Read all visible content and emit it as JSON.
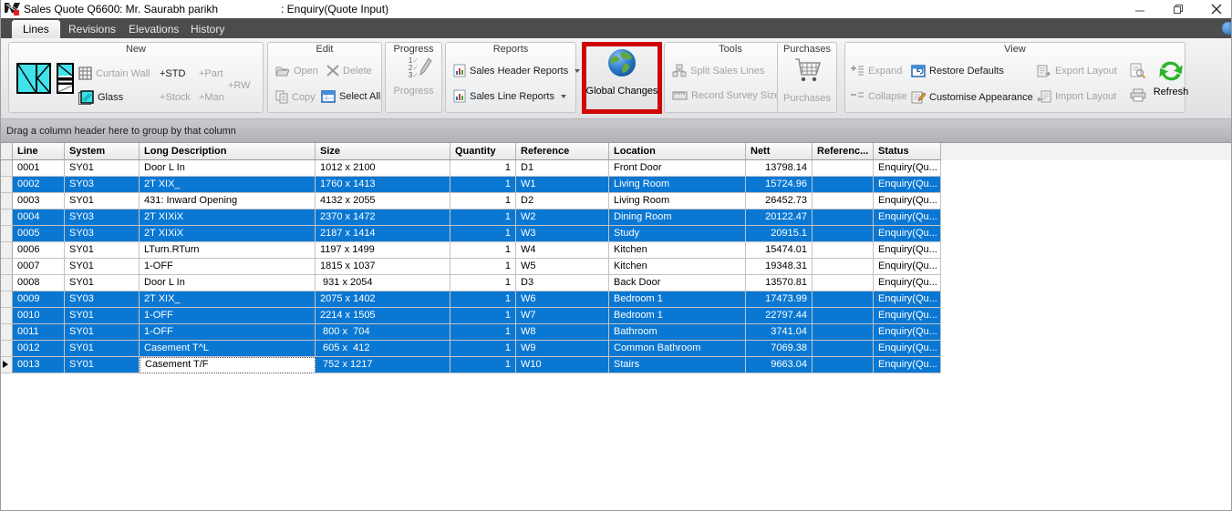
{
  "title_bar": {
    "left": "Sales Quote Q6600",
    "mid": ": Mr. Saurabh parikh",
    "right": ": Enquiry(Quote Input)"
  },
  "tabs": [
    {
      "label": "Lines",
      "active": true
    },
    {
      "label": "Revisions",
      "active": false
    },
    {
      "label": "Elevations",
      "active": false
    },
    {
      "label": "History",
      "active": false
    }
  ],
  "ribbon": {
    "new": {
      "label": "New",
      "curtain_wall": "Curtain Wall",
      "std": "+STD",
      "part": "+Part",
      "rw": "+RW",
      "glass": "Glass",
      "stock": "+Stock",
      "man": "+Man"
    },
    "edit": {
      "label": "Edit",
      "open": "Open",
      "delete": "Delete",
      "copy": "Copy",
      "select_all": "Select All"
    },
    "progress": {
      "label": "Progress",
      "button": "Progress"
    },
    "reports": {
      "label": "Reports",
      "header_reports": "Sales Header Reports",
      "line_reports": "Sales Line Reports"
    },
    "global_changes": {
      "label": "Global Changes"
    },
    "tools": {
      "label": "Tools",
      "split": "Split Sales Lines",
      "record": "Record Survey Sizes"
    },
    "purchases": {
      "label": "Purchases",
      "button": "Purchases"
    },
    "view": {
      "label": "View",
      "expand": "Expand",
      "collapse": "Collapse",
      "restore": "Restore Defaults",
      "customise": "Customise Appearance",
      "export": "Export Layout",
      "import": "Import Layout",
      "refresh": "Refresh"
    }
  },
  "groupbar": {
    "text": "Drag a column header here to group by that column"
  },
  "grid": {
    "columns": [
      "Line",
      "System",
      "Long Description",
      "Size",
      "Quantity",
      "Reference",
      "Location",
      "Nett",
      "Referenc...",
      "Status"
    ],
    "rows": [
      {
        "line": "0001",
        "system": "SY01",
        "desc": "Door L In",
        "size": "1012 x 2100",
        "qty": "1",
        "ref": "D1",
        "loc": "Front Door",
        "nett": "13798.14",
        "ref2": "",
        "status": "Enquiry(Qu...",
        "selected": false,
        "current": false,
        "editing": false
      },
      {
        "line": "0002",
        "system": "SY03",
        "desc": "2T XIX_",
        "size": "1760 x 1413",
        "qty": "1",
        "ref": "W1",
        "loc": "Living Room",
        "nett": "15724.96",
        "ref2": "",
        "status": "Enquiry(Qu...",
        "selected": true,
        "current": false,
        "editing": false
      },
      {
        "line": "0003",
        "system": "SY01",
        "desc": "431: Inward Opening",
        "size": "4132 x 2055",
        "qty": "1",
        "ref": "D2",
        "loc": "Living Room",
        "nett": "26452.73",
        "ref2": "",
        "status": "Enquiry(Qu...",
        "selected": false,
        "current": false,
        "editing": false
      },
      {
        "line": "0004",
        "system": "SY03",
        "desc": "2T XIXiX",
        "size": "2370 x 1472",
        "qty": "1",
        "ref": "W2",
        "loc": "Dining Room",
        "nett": "20122.47",
        "ref2": "",
        "status": "Enquiry(Qu...",
        "selected": true,
        "current": false,
        "editing": false
      },
      {
        "line": "0005",
        "system": "SY03",
        "desc": "2T XIXiX",
        "size": "2187 x 1414",
        "qty": "1",
        "ref": "W3",
        "loc": "Study",
        "nett": "20915.1",
        "ref2": "",
        "status": "Enquiry(Qu...",
        "selected": true,
        "current": false,
        "editing": false
      },
      {
        "line": "0006",
        "system": "SY01",
        "desc": "LTurn.RTurn",
        "size": "1197 x 1499",
        "qty": "1",
        "ref": "W4",
        "loc": "Kitchen",
        "nett": "15474.01",
        "ref2": "",
        "status": "Enquiry(Qu...",
        "selected": false,
        "current": false,
        "editing": false
      },
      {
        "line": "0007",
        "system": "SY01",
        "desc": "1-OFF",
        "size": "1815 x 1037",
        "qty": "1",
        "ref": "W5",
        "loc": "Kitchen",
        "nett": "19348.31",
        "ref2": "",
        "status": "Enquiry(Qu...",
        "selected": false,
        "current": false,
        "editing": false
      },
      {
        "line": "0008",
        "system": "SY01",
        "desc": "Door L In",
        "size": " 931 x 2054",
        "qty": "1",
        "ref": "D3",
        "loc": "Back Door",
        "nett": "13570.81",
        "ref2": "",
        "status": "Enquiry(Qu...",
        "selected": false,
        "current": false,
        "editing": false
      },
      {
        "line": "0009",
        "system": "SY03",
        "desc": "2T XIX_",
        "size": "2075 x 1402",
        "qty": "1",
        "ref": "W6",
        "loc": "Bedroom 1",
        "nett": "17473.99",
        "ref2": "",
        "status": "Enquiry(Qu...",
        "selected": true,
        "current": false,
        "editing": false
      },
      {
        "line": "0010",
        "system": "SY01",
        "desc": "1-OFF",
        "size": "2214 x 1505",
        "qty": "1",
        "ref": "W7",
        "loc": "Bedroom 1",
        "nett": "22797.44",
        "ref2": "",
        "status": "Enquiry(Qu...",
        "selected": true,
        "current": false,
        "editing": false
      },
      {
        "line": "0011",
        "system": "SY01",
        "desc": "1-OFF",
        "size": " 800 x  704",
        "qty": "1",
        "ref": "W8",
        "loc": "Bathroom",
        "nett": "3741.04",
        "ref2": "",
        "status": "Enquiry(Qu...",
        "selected": true,
        "current": false,
        "editing": false
      },
      {
        "line": "0012",
        "system": "SY01",
        "desc": "Casement T^L",
        "size": " 605 x  412",
        "qty": "1",
        "ref": "W9",
        "loc": "Common Bathroom",
        "nett": "7069.38",
        "ref2": "",
        "status": "Enquiry(Qu...",
        "selected": true,
        "current": false,
        "editing": false
      },
      {
        "line": "0013",
        "system": "SY01",
        "desc": "Casement T/F",
        "size": " 752 x 1217",
        "qty": "1",
        "ref": "W10",
        "loc": "Stairs",
        "nett": "9663.04",
        "ref2": "",
        "status": "Enquiry(Qu...",
        "selected": true,
        "current": true,
        "editing": true
      }
    ]
  },
  "colors": {
    "selection": "#0a78d3",
    "annotation": "#cf0404",
    "tabstrip": "#4c4c4e",
    "disabled": "#a3a3a4",
    "refresh_green": "#2db52d"
  }
}
